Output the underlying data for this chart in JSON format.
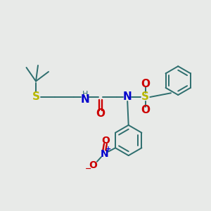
{
  "bg_color": "#e8eae8",
  "bond_color": "#2d6e6e",
  "S_color": "#b8b800",
  "N_color": "#0000cc",
  "O_color": "#cc0000",
  "H_color": "#2d6e6e",
  "figsize": [
    3.0,
    3.0
  ],
  "dpi": 100,
  "xlim": [
    0,
    10
  ],
  "ylim": [
    0,
    10
  ]
}
